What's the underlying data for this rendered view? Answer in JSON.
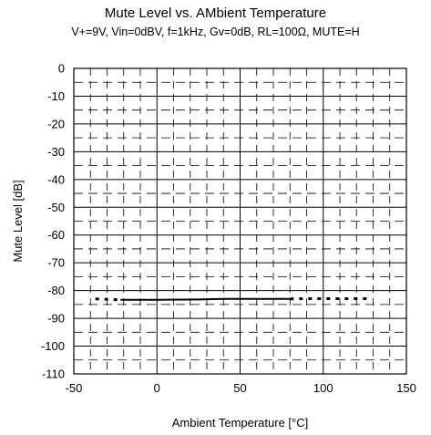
{
  "chart_data": {
    "type": "line",
    "title": "Mute Level vs. AMbient Temperature",
    "subtitle": "V+=9V, Vin=0dBV, f=1kHz, Gv=0dB, RL=100Ω, MUTE=H",
    "xlabel": "Ambient Temperature [°C]",
    "ylabel": "Mute Level [dB]",
    "xlim": [
      -50,
      150
    ],
    "ylim": [
      -110,
      0
    ],
    "xticks": [
      "-50",
      "0",
      "50",
      "100",
      "150"
    ],
    "yticks": [
      "0",
      "-10",
      "-20",
      "-30",
      "-40",
      "-50",
      "-60",
      "-70",
      "-80",
      "-90",
      "-100",
      "-110"
    ],
    "grid": true,
    "series": [
      {
        "style": "dotted",
        "x": [
          -37,
          -32,
          -27,
          -22
        ],
        "y": [
          -83.0,
          -83.1,
          -83.2,
          -83.3
        ]
      },
      {
        "style": "solid",
        "x": [
          -22,
          0,
          25,
          40,
          60,
          80
        ],
        "y": [
          -83.3,
          -83.3,
          -83.2,
          -83.0,
          -83.0,
          -83.0
        ]
      },
      {
        "style": "dotted",
        "x": [
          80,
          90,
          100,
          110,
          120,
          128
        ],
        "y": [
          -83.0,
          -82.9,
          -82.9,
          -82.9,
          -82.9,
          -82.9
        ]
      }
    ]
  }
}
